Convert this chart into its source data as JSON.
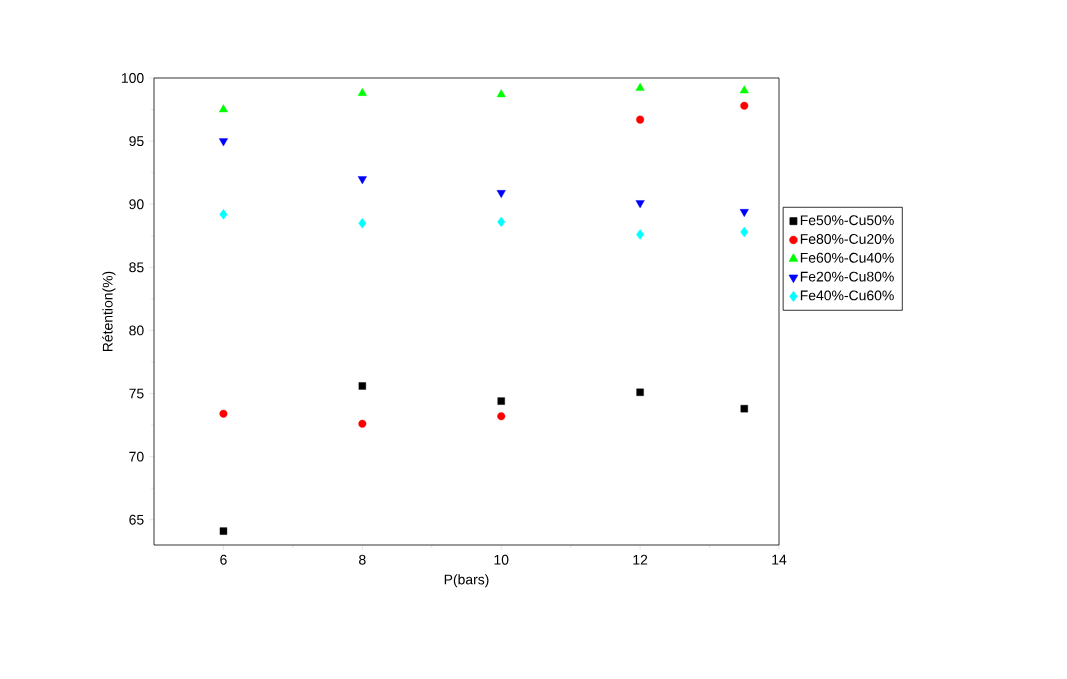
{
  "chart_data": {
    "type": "scatter",
    "xlabel": "P(bars)",
    "ylabel": "Rétention(%)",
    "x": [
      6,
      8,
      10,
      12,
      13.5
    ],
    "xlim": [
      5,
      14
    ],
    "xticks": [
      6,
      8,
      10,
      12,
      14
    ],
    "ylim": [
      63,
      100
    ],
    "yticks": [
      65,
      70,
      75,
      80,
      85,
      90,
      95,
      100
    ],
    "legend": "right",
    "grid": false,
    "series": [
      {
        "name": "Fe50%-Cu50%",
        "color": "#000000",
        "marker": "square",
        "values": [
          64.1,
          75.6,
          74.4,
          75.1,
          73.8
        ]
      },
      {
        "name": "Fe80%-Cu20%",
        "color": "#ff0000",
        "marker": "circle",
        "values": [
          73.4,
          72.6,
          73.2,
          96.7,
          97.8
        ]
      },
      {
        "name": "Fe60%-Cu40%",
        "color": "#00ff00",
        "marker": "triangle",
        "values": [
          97.5,
          98.8,
          98.7,
          99.2,
          99.0
        ]
      },
      {
        "name": "Fe20%-Cu80%",
        "color": "#0000ff",
        "marker": "triangle down",
        "values": [
          95.0,
          92.0,
          90.9,
          90.1,
          89.4
        ]
      },
      {
        "name": "Fe40%-Cu60%",
        "color": "#00ffff",
        "marker": "diamond",
        "values": [
          89.2,
          88.5,
          88.6,
          87.6,
          87.8
        ]
      }
    ]
  }
}
